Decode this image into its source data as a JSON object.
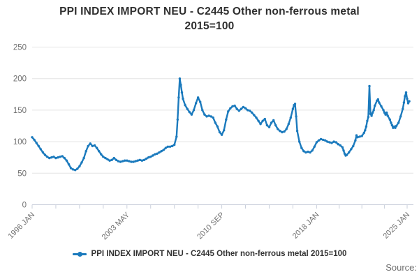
{
  "title": {
    "line1": "PPI INDEX IMPORT NEU - C2445 Other non-ferrous metal",
    "line2": "2015=100"
  },
  "legend": {
    "label": "PPI INDEX IMPORT NEU - C2445 Other non-ferrous metal 2015=100"
  },
  "source": {
    "label": "Source:"
  },
  "colors": {
    "series": "#1b7abd",
    "grid": "#e4e4e4",
    "axis": "#c9cfdb",
    "tick": "#c9cfdb",
    "title_text": "#2f2f2f",
    "axis_text": "#6f6f6f"
  },
  "chart_data": {
    "type": "line",
    "title": "PPI INDEX IMPORT NEU - C2445 Other non-ferrous metal 2015=100",
    "xlabel": "",
    "ylabel": "",
    "x_start": "1996 JAN",
    "x_end": "2025 MAR",
    "ylim": [
      0,
      260
    ],
    "y_ticks": [
      0,
      50,
      100,
      150,
      200,
      250
    ],
    "grid": "horizontal",
    "legend_position": "bottom",
    "x_tick_labels": [
      "1996 JAN",
      "2003 MAY",
      "2010 SEP",
      "2018 JAN",
      "2025 JAN"
    ],
    "x_label_months": [
      0,
      88,
      176,
      264,
      348
    ],
    "x_minor_tick_months": [
      0,
      22,
      44,
      66,
      88,
      110,
      132,
      154,
      176,
      198,
      220,
      242,
      264,
      285,
      306,
      327,
      348
    ],
    "series": [
      {
        "name": "PPI INDEX IMPORT NEU - C2445 Other non-ferrous metal 2015=100",
        "points": [
          [
            0,
            107
          ],
          [
            2,
            103
          ],
          [
            4,
            98
          ],
          [
            6,
            93
          ],
          [
            8,
            88
          ],
          [
            10,
            83
          ],
          [
            12,
            79
          ],
          [
            14,
            76
          ],
          [
            16,
            74
          ],
          [
            18,
            75
          ],
          [
            20,
            76
          ],
          [
            22,
            74
          ],
          [
            24,
            75
          ],
          [
            26,
            76
          ],
          [
            28,
            77
          ],
          [
            30,
            74
          ],
          [
            32,
            70
          ],
          [
            34,
            64
          ],
          [
            36,
            58
          ],
          [
            38,
            56
          ],
          [
            40,
            55
          ],
          [
            42,
            57
          ],
          [
            44,
            61
          ],
          [
            46,
            67
          ],
          [
            48,
            74
          ],
          [
            50,
            85
          ],
          [
            52,
            93
          ],
          [
            54,
            97
          ],
          [
            56,
            93
          ],
          [
            58,
            94
          ],
          [
            60,
            90
          ],
          [
            62,
            85
          ],
          [
            64,
            80
          ],
          [
            66,
            76
          ],
          [
            68,
            74
          ],
          [
            70,
            72
          ],
          [
            72,
            70
          ],
          [
            74,
            71
          ],
          [
            76,
            74
          ],
          [
            78,
            71
          ],
          [
            80,
            69
          ],
          [
            82,
            68
          ],
          [
            84,
            69
          ],
          [
            86,
            70
          ],
          [
            88,
            70
          ],
          [
            90,
            69
          ],
          [
            92,
            68
          ],
          [
            94,
            68
          ],
          [
            96,
            69
          ],
          [
            98,
            70
          ],
          [
            100,
            71
          ],
          [
            102,
            70
          ],
          [
            104,
            71
          ],
          [
            106,
            73
          ],
          [
            108,
            75
          ],
          [
            110,
            76
          ],
          [
            112,
            78
          ],
          [
            114,
            80
          ],
          [
            116,
            81
          ],
          [
            118,
            83
          ],
          [
            120,
            85
          ],
          [
            122,
            87
          ],
          [
            124,
            90
          ],
          [
            126,
            92
          ],
          [
            128,
            92
          ],
          [
            130,
            93
          ],
          [
            132,
            95
          ],
          [
            134,
            108
          ],
          [
            135,
            135
          ],
          [
            136,
            170
          ],
          [
            137,
            200
          ],
          [
            138,
            190
          ],
          [
            139,
            178
          ],
          [
            140,
            168
          ],
          [
            142,
            158
          ],
          [
            144,
            152
          ],
          [
            146,
            147
          ],
          [
            148,
            143
          ],
          [
            150,
            150
          ],
          [
            152,
            161
          ],
          [
            154,
            170
          ],
          [
            156,
            163
          ],
          [
            158,
            150
          ],
          [
            160,
            143
          ],
          [
            162,
            140
          ],
          [
            164,
            141
          ],
          [
            166,
            140
          ],
          [
            168,
            138
          ],
          [
            170,
            130
          ],
          [
            172,
            124
          ],
          [
            174,
            115
          ],
          [
            176,
            111
          ],
          [
            178,
            118
          ],
          [
            180,
            135
          ],
          [
            182,
            148
          ],
          [
            184,
            153
          ],
          [
            186,
            156
          ],
          [
            188,
            157
          ],
          [
            190,
            152
          ],
          [
            192,
            149
          ],
          [
            194,
            152
          ],
          [
            196,
            155
          ],
          [
            198,
            153
          ],
          [
            200,
            150
          ],
          [
            202,
            149
          ],
          [
            204,
            146
          ],
          [
            206,
            142
          ],
          [
            208,
            138
          ],
          [
            210,
            133
          ],
          [
            212,
            128
          ],
          [
            214,
            133
          ],
          [
            216,
            136
          ],
          [
            218,
            126
          ],
          [
            220,
            123
          ],
          [
            222,
            130
          ],
          [
            224,
            134
          ],
          [
            226,
            126
          ],
          [
            228,
            120
          ],
          [
            230,
            117
          ],
          [
            232,
            115
          ],
          [
            234,
            116
          ],
          [
            236,
            120
          ],
          [
            238,
            128
          ],
          [
            240,
            138
          ],
          [
            242,
            152
          ],
          [
            243,
            158
          ],
          [
            244,
            160
          ],
          [
            245,
            140
          ],
          [
            246,
            117
          ],
          [
            248,
            100
          ],
          [
            250,
            90
          ],
          [
            252,
            85
          ],
          [
            254,
            83
          ],
          [
            256,
            84
          ],
          [
            258,
            83
          ],
          [
            260,
            86
          ],
          [
            262,
            92
          ],
          [
            264,
            99
          ],
          [
            266,
            102
          ],
          [
            268,
            104
          ],
          [
            270,
            103
          ],
          [
            272,
            102
          ],
          [
            274,
            100
          ],
          [
            276,
            99
          ],
          [
            278,
            98
          ],
          [
            280,
            100
          ],
          [
            282,
            99
          ],
          [
            284,
            96
          ],
          [
            286,
            94
          ],
          [
            288,
            91
          ],
          [
            289,
            86
          ],
          [
            290,
            81
          ],
          [
            291,
            78
          ],
          [
            292,
            79
          ],
          [
            294,
            83
          ],
          [
            296,
            88
          ],
          [
            298,
            93
          ],
          [
            300,
            102
          ],
          [
            301,
            110
          ],
          [
            302,
            107
          ],
          [
            304,
            108
          ],
          [
            306,
            109
          ],
          [
            308,
            114
          ],
          [
            309,
            118
          ],
          [
            310,
            124
          ],
          [
            311,
            133
          ],
          [
            312,
            139
          ],
          [
            313,
            188
          ],
          [
            314,
            144
          ],
          [
            315,
            141
          ],
          [
            316,
            146
          ],
          [
            317,
            150
          ],
          [
            318,
            157
          ],
          [
            320,
            165
          ],
          [
            321,
            167
          ],
          [
            322,
            162
          ],
          [
            324,
            156
          ],
          [
            326,
            150
          ],
          [
            327,
            146
          ],
          [
            328,
            143
          ],
          [
            329,
            146
          ],
          [
            330,
            141
          ],
          [
            332,
            135
          ],
          [
            333,
            130
          ],
          [
            334,
            126
          ],
          [
            335,
            122
          ],
          [
            336,
            124
          ],
          [
            337,
            122
          ],
          [
            338,
            125
          ],
          [
            340,
            130
          ],
          [
            342,
            140
          ],
          [
            344,
            152
          ],
          [
            345,
            162
          ],
          [
            346,
            172
          ],
          [
            347,
            178
          ],
          [
            348,
            168
          ],
          [
            349,
            161
          ],
          [
            350,
            164
          ]
        ]
      }
    ]
  }
}
